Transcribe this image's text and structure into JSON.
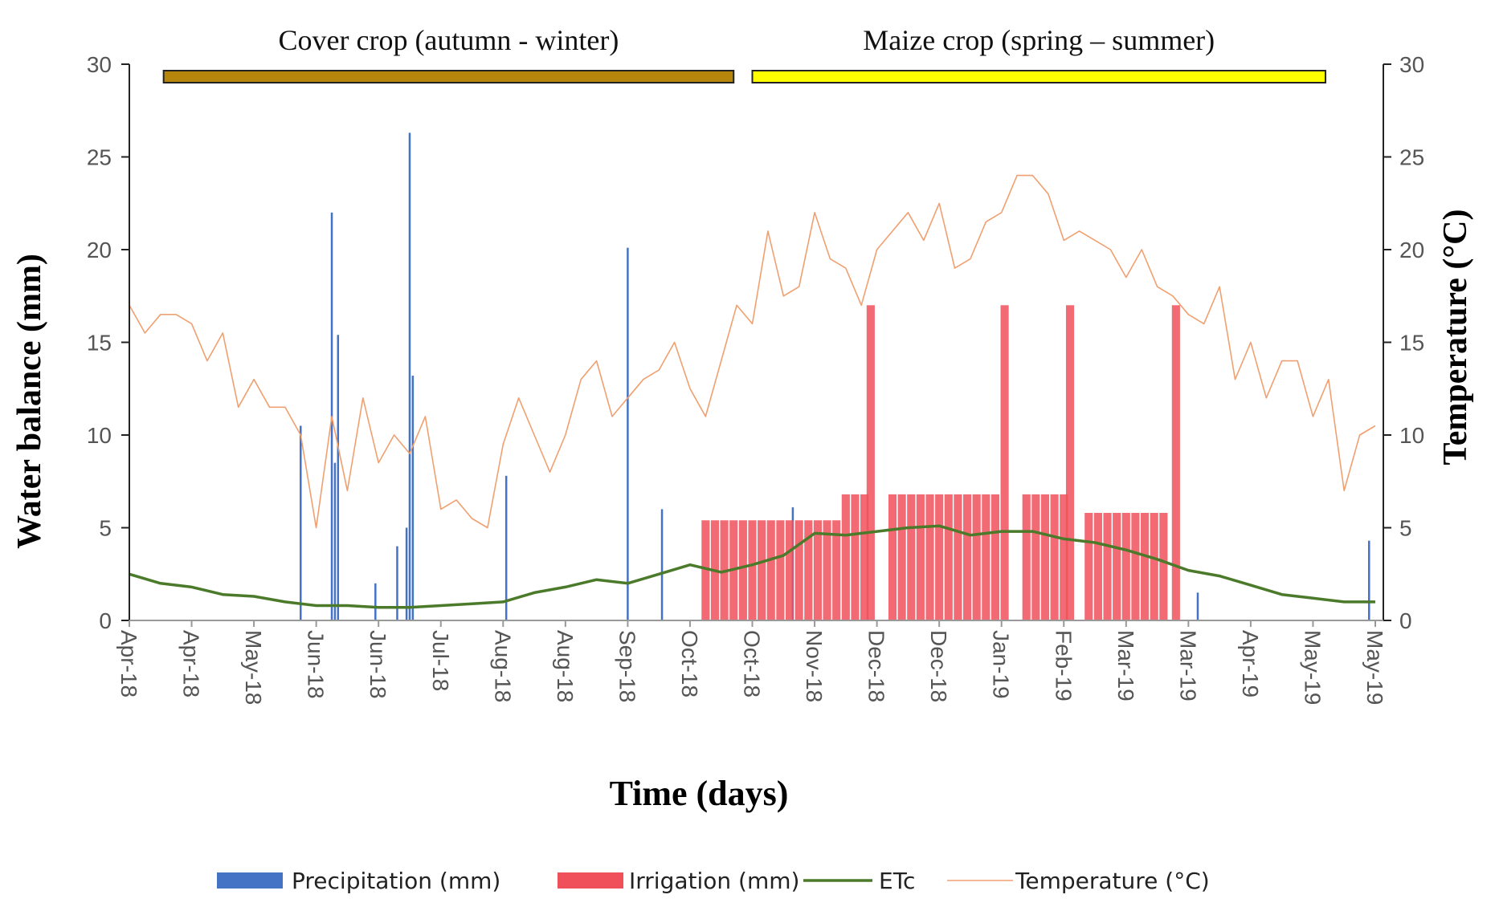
{
  "chart_data": {
    "type": "combo",
    "xlabel": "Time (days)",
    "ylabel": "Water balance (mm)",
    "y2label": "Temperature (°C)",
    "xlim": [
      0,
      400
    ],
    "xticks": [
      {
        "value": 0,
        "label": "Apr-18"
      },
      {
        "value": 20,
        "label": "Apr-18"
      },
      {
        "value": 40,
        "label": "May-18"
      },
      {
        "value": 60,
        "label": "Jun-18"
      },
      {
        "value": 80,
        "label": "Jun-18"
      },
      {
        "value": 100,
        "label": "Jul-18"
      },
      {
        "value": 120,
        "label": "Aug-18"
      },
      {
        "value": 140,
        "label": "Aug-18"
      },
      {
        "value": 160,
        "label": "Sep-18"
      },
      {
        "value": 180,
        "label": "Oct-18"
      },
      {
        "value": 200,
        "label": "Oct-18"
      },
      {
        "value": 220,
        "label": "Nov-18"
      },
      {
        "value": 240,
        "label": "Dec-18"
      },
      {
        "value": 260,
        "label": "Dec-18"
      },
      {
        "value": 280,
        "label": "Jan-19"
      },
      {
        "value": 300,
        "label": "Feb-19"
      },
      {
        "value": 320,
        "label": "Mar-19"
      },
      {
        "value": 340,
        "label": "Mar-19"
      },
      {
        "value": 360,
        "label": "Apr-19"
      },
      {
        "value": 380,
        "label": "May-19"
      },
      {
        "value": 400,
        "label": "May-19"
      }
    ],
    "ylim": [
      0,
      30
    ],
    "yticks": [
      0,
      5,
      10,
      15,
      20,
      25,
      30
    ],
    "y2lim": [
      0,
      30
    ],
    "y2ticks": [
      0,
      5,
      10,
      15,
      20,
      25,
      30
    ],
    "periods": [
      {
        "label": "Cover crop (autumn - winter)",
        "start": 11,
        "end": 194,
        "color": "#b5860b"
      },
      {
        "label": "Maize crop (spring – summer)",
        "start": 200,
        "end": 384,
        "color": "#ffff00"
      }
    ],
    "series": [
      {
        "name": "Precipitation (mm)",
        "kind": "bar",
        "color": "#4472c4",
        "x": [
          55,
          65,
          66,
          67,
          79,
          86,
          89,
          90,
          91,
          121,
          160,
          171,
          213,
          343,
          398
        ],
        "values": [
          10.5,
          22,
          8.5,
          15.4,
          2,
          4,
          5,
          26.3,
          13.2,
          7.8,
          20.1,
          6,
          6.1,
          1.5,
          4.3
        ]
      },
      {
        "name": "Irrigation (mm)",
        "kind": "bar",
        "color": "#f0505a",
        "x": [
          185,
          188,
          191,
          194,
          197,
          200,
          203,
          206,
          209,
          212,
          215,
          218,
          221,
          224,
          227,
          230,
          233,
          236,
          238,
          245,
          248,
          251,
          254,
          257,
          260,
          263,
          266,
          269,
          272,
          275,
          278,
          281,
          288,
          291,
          294,
          297,
          300,
          302,
          308,
          311,
          314,
          317,
          320,
          323,
          326,
          329,
          332,
          336
        ],
        "values": [
          5.4,
          5.4,
          5.4,
          5.4,
          5.4,
          5.4,
          5.4,
          5.4,
          5.4,
          5.4,
          5.4,
          5.4,
          5.4,
          5.4,
          5.4,
          6.8,
          6.8,
          6.8,
          17,
          6.8,
          6.8,
          6.8,
          6.8,
          6.8,
          6.8,
          6.8,
          6.8,
          6.8,
          6.8,
          6.8,
          6.8,
          17,
          6.8,
          6.8,
          6.8,
          6.8,
          6.8,
          17,
          5.8,
          5.8,
          5.8,
          5.8,
          5.8,
          5.8,
          5.8,
          5.8,
          5.8,
          17
        ]
      },
      {
        "name": "ETc",
        "kind": "line",
        "color": "#4a7a2a",
        "x": [
          0,
          10,
          20,
          30,
          40,
          50,
          60,
          70,
          80,
          90,
          100,
          110,
          120,
          130,
          140,
          150,
          160,
          170,
          180,
          190,
          200,
          210,
          220,
          230,
          240,
          250,
          260,
          270,
          280,
          290,
          300,
          310,
          320,
          330,
          340,
          350,
          360,
          370,
          380,
          390,
          400
        ],
        "values": [
          2.5,
          2,
          1.8,
          1.4,
          1.3,
          1.0,
          0.8,
          0.8,
          0.7,
          0.7,
          0.8,
          0.9,
          1.0,
          1.5,
          1.8,
          2.2,
          2.0,
          2.5,
          3.0,
          2.6,
          3.0,
          3.5,
          4.7,
          4.6,
          4.8,
          5.0,
          5.1,
          4.6,
          4.8,
          4.8,
          4.4,
          4.2,
          3.8,
          3.3,
          2.7,
          2.4,
          1.9,
          1.4,
          1.2,
          1.0,
          1.0
        ]
      },
      {
        "name": "Temperature (°C)",
        "kind": "line",
        "axis": "y2",
        "color": "#f0a070",
        "x": [
          0,
          5,
          10,
          15,
          20,
          25,
          30,
          35,
          40,
          45,
          50,
          55,
          60,
          65,
          70,
          75,
          80,
          85,
          90,
          95,
          100,
          105,
          110,
          115,
          120,
          125,
          130,
          135,
          140,
          145,
          150,
          155,
          160,
          165,
          170,
          175,
          180,
          185,
          190,
          195,
          200,
          205,
          210,
          215,
          220,
          225,
          230,
          235,
          240,
          245,
          250,
          255,
          260,
          265,
          270,
          275,
          280,
          285,
          290,
          295,
          300,
          305,
          310,
          315,
          320,
          325,
          330,
          335,
          340,
          345,
          350,
          355,
          360,
          365,
          370,
          375,
          380,
          385,
          390,
          395,
          400
        ],
        "values": [
          17,
          15.5,
          16.5,
          16.5,
          16,
          14,
          15.5,
          11.5,
          13,
          11.5,
          11.5,
          10,
          5,
          11,
          7,
          12,
          8.5,
          10,
          9,
          11,
          6,
          6.5,
          5.5,
          5,
          9.5,
          12,
          10,
          8,
          10,
          13,
          14,
          11,
          12,
          13,
          13.5,
          15,
          12.5,
          11,
          14,
          17,
          16,
          21,
          17.5,
          18,
          22,
          19.5,
          19,
          17,
          20,
          21,
          22,
          20.5,
          22.5,
          19,
          19.5,
          21.5,
          22,
          24,
          24,
          23,
          20.5,
          21,
          20.5,
          20,
          18.5,
          20,
          18,
          17.5,
          16.5,
          16,
          18,
          13,
          15,
          12,
          14,
          14,
          11,
          13,
          7,
          10,
          10.5
        ]
      }
    ]
  }
}
